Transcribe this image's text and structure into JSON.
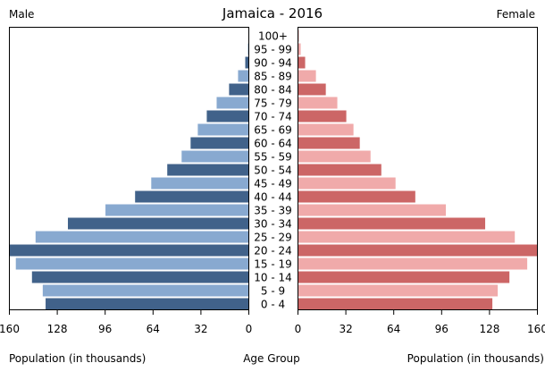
{
  "chart_data": {
    "type": "bar",
    "title": "Jamaica - 2016",
    "left_label": "Male",
    "right_label": "Female",
    "xlabel_left": "Population (in thousands)",
    "xlabel_center": "Age Group",
    "xlabel_right": "Population (in thousands)",
    "xlim": [
      0,
      160
    ],
    "xticks": [
      160,
      128,
      96,
      64,
      32,
      0
    ],
    "xticks_right": [
      0,
      32,
      64,
      96,
      128,
      160
    ],
    "categories": [
      "0 - 4",
      "5 - 9",
      "10 - 14",
      "15 - 19",
      "20 - 24",
      "25 - 29",
      "30 - 34",
      "35 - 39",
      "40 - 44",
      "45 - 49",
      "50 - 54",
      "55 - 59",
      "60 - 64",
      "65 - 69",
      "70 - 74",
      "75 - 79",
      "80 - 84",
      "85 - 89",
      "90 - 94",
      "95 - 99",
      "100+"
    ],
    "series": [
      {
        "name": "Male",
        "values": [
          135.8,
          137.7,
          144.9,
          155.7,
          160.0,
          142.5,
          120.9,
          95.8,
          76.0,
          65.2,
          54.5,
          44.9,
          38.9,
          34.1,
          28.1,
          21.5,
          13.2,
          7.2,
          2.4,
          0.6,
          0.3
        ],
        "colors": [
          "#41628a",
          "#88a9d0"
        ]
      },
      {
        "name": "Female",
        "values": [
          129.9,
          133.5,
          141.3,
          153.2,
          160.0,
          144.9,
          125.1,
          98.8,
          78.4,
          65.2,
          55.7,
          48.5,
          41.3,
          37.1,
          32.3,
          26.3,
          18.6,
          12.0,
          4.8,
          1.8,
          0.5
        ],
        "colors": [
          "#cc6666",
          "#f0aaaa"
        ]
      }
    ]
  }
}
